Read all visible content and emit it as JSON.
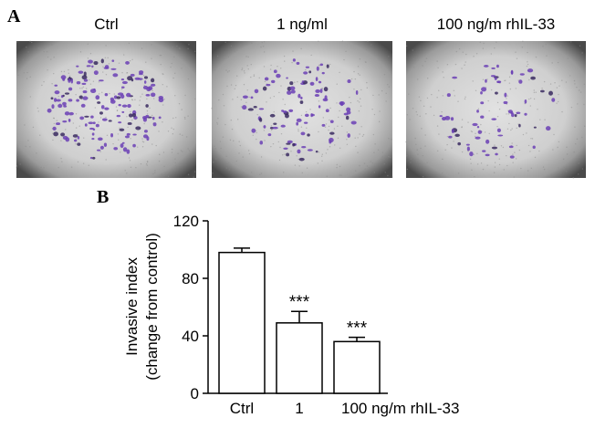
{
  "panel_a": {
    "label": "A",
    "captions": [
      "Ctrl",
      "1 ng/ml",
      "100 ng/m rhIL-33"
    ]
  },
  "chart_data": {
    "type": "bar",
    "panel_label": "B",
    "y_label": [
      "Invasive index",
      "(change from control)"
    ],
    "categories": [
      "Ctrl",
      "1",
      "100 ng/m rhIL-33"
    ],
    "values": [
      98,
      49,
      36
    ],
    "errors": [
      3,
      8,
      3
    ],
    "significance": [
      null,
      "***",
      "***"
    ],
    "color": "#ffffff",
    "ylim": [
      0,
      120
    ],
    "yticks": [
      0,
      40,
      80,
      120
    ],
    "grid": false
  }
}
